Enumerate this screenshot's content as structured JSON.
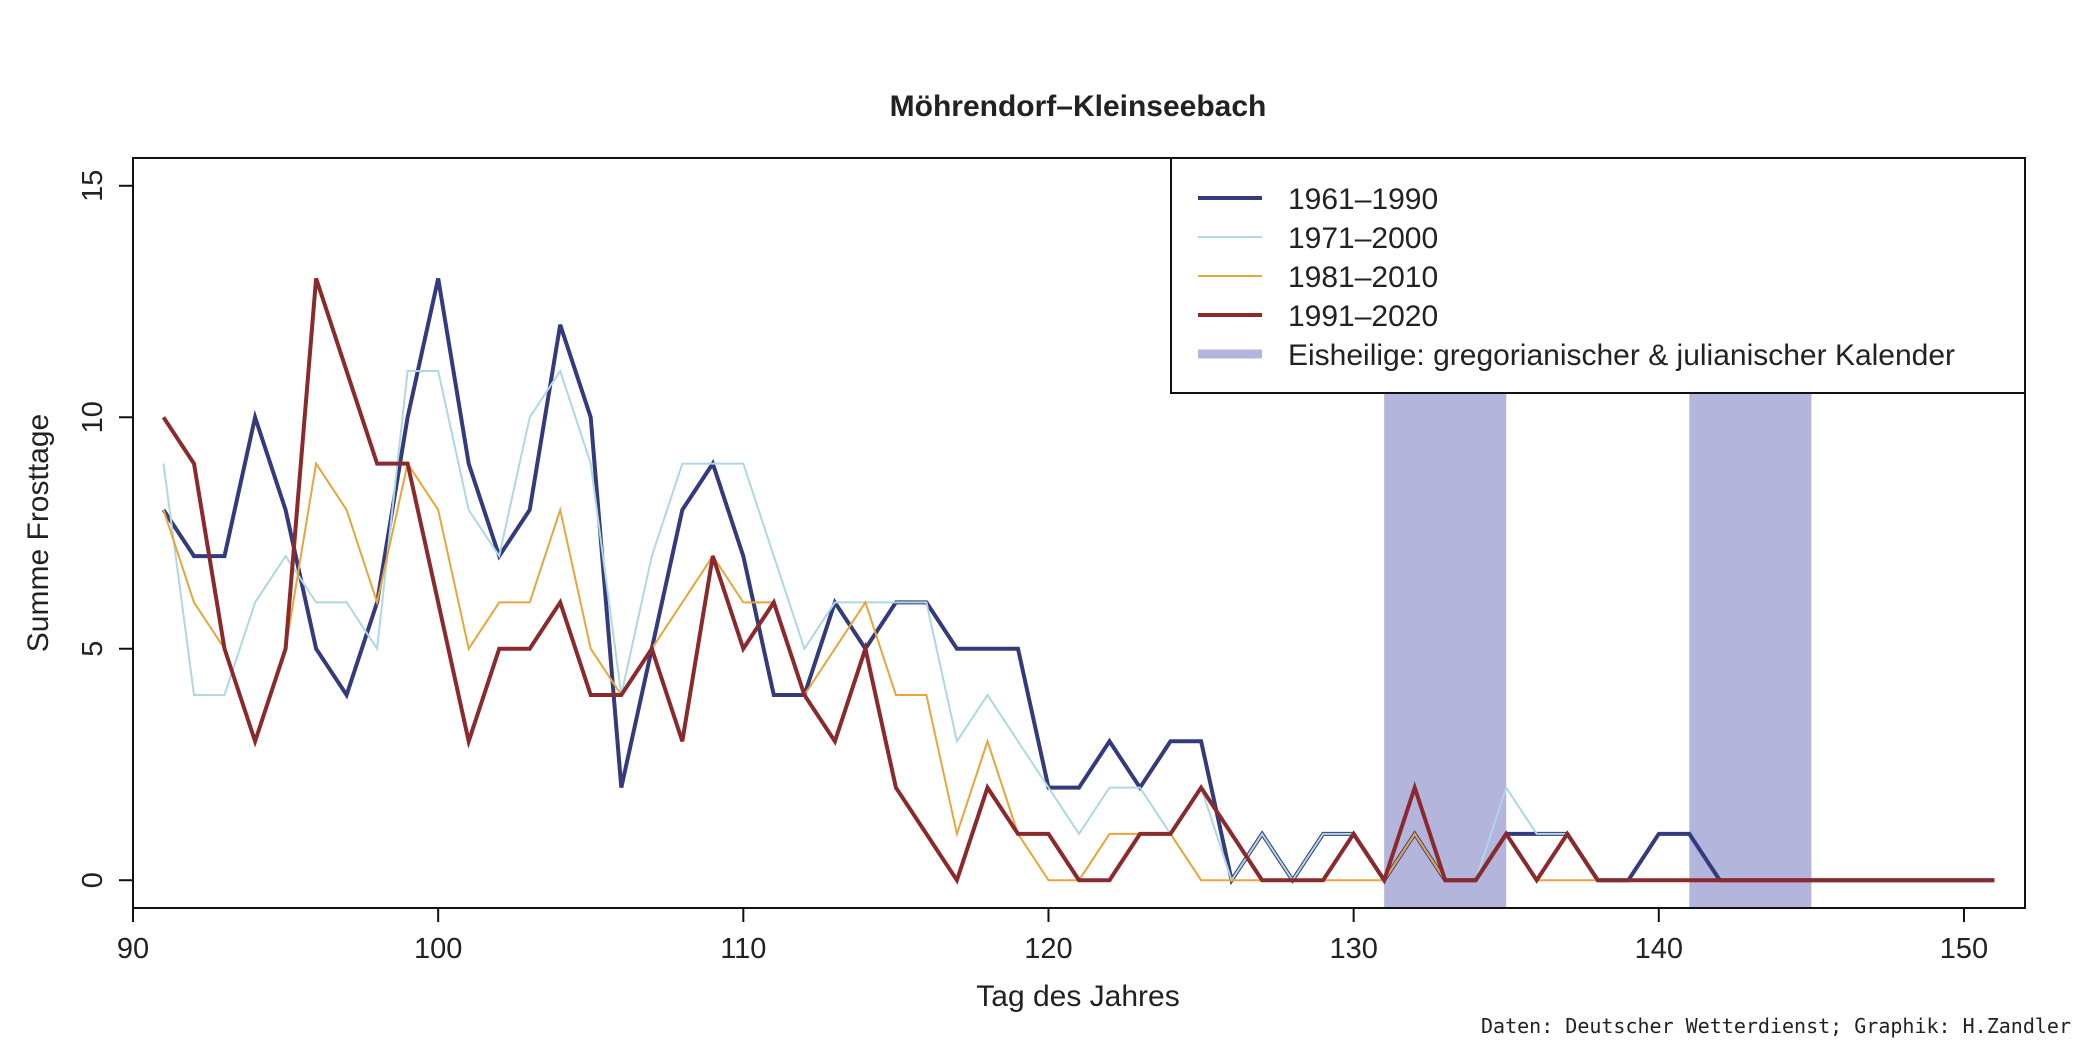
{
  "chart_data": {
    "type": "line",
    "title": "Möhrendorf–Kleinseebach",
    "xlabel": "Tag des Jahres",
    "ylabel": "Summe Frosttage",
    "xlim": [
      90,
      152
    ],
    "ylim": [
      -0.6,
      15.6
    ],
    "x_ticks": [
      90,
      100,
      110,
      120,
      130,
      140,
      150
    ],
    "y_ticks": [
      0,
      5,
      10,
      15
    ],
    "grid": false,
    "legend_position": "top-right",
    "highlight_bands": {
      "name": "Eisheilige: gregorianischer & julianischer Kalender",
      "color": "#b3b5dc",
      "ranges": [
        [
          131,
          135
        ],
        [
          141,
          145
        ]
      ]
    },
    "x": [
      91,
      92,
      93,
      94,
      95,
      96,
      97,
      98,
      99,
      100,
      101,
      102,
      103,
      104,
      105,
      106,
      107,
      108,
      109,
      110,
      111,
      112,
      113,
      114,
      115,
      116,
      117,
      118,
      119,
      120,
      121,
      122,
      123,
      124,
      125,
      126,
      127,
      128,
      129,
      130,
      131,
      132,
      133,
      134,
      135,
      136,
      137,
      138,
      139,
      140,
      141,
      142,
      143,
      144,
      145,
      146,
      147,
      148,
      149,
      150,
      151
    ],
    "series": [
      {
        "name": "1961–1990",
        "color": "#343b7c",
        "width": 4,
        "values": [
          8,
          7,
          7,
          10,
          8,
          5,
          4,
          6,
          10,
          13,
          9,
          7,
          8,
          12,
          10,
          2,
          5,
          8,
          9,
          7,
          4,
          4,
          6,
          5,
          6,
          6,
          5,
          5,
          5,
          2,
          2,
          3,
          2,
          3,
          3,
          0,
          1,
          0,
          1,
          1,
          0,
          1,
          0,
          0,
          1,
          1,
          1,
          0,
          0,
          1,
          1,
          0,
          0,
          0,
          0,
          0,
          0,
          0,
          0,
          0,
          0
        ]
      },
      {
        "name": "1971–2000",
        "color": "#aed8e2",
        "width": 2,
        "values": [
          9,
          4,
          4,
          6,
          7,
          6,
          6,
          5,
          11,
          11,
          8,
          7,
          10,
          11,
          9,
          4,
          7,
          9,
          9,
          9,
          7,
          5,
          6,
          6,
          6,
          6,
          3,
          4,
          3,
          2,
          1,
          2,
          2,
          1,
          2,
          0,
          1,
          0,
          1,
          1,
          0,
          1,
          0,
          0,
          2,
          1,
          1,
          0,
          0,
          0,
          0,
          0,
          0,
          0,
          0,
          0,
          0,
          0,
          0,
          0,
          0
        ]
      },
      {
        "name": "1981–2010",
        "color": "#eaa53a",
        "width": 2,
        "values": [
          8,
          6,
          5,
          3,
          5,
          9,
          8,
          6,
          9,
          8,
          5,
          6,
          6,
          8,
          5,
          4,
          5,
          6,
          7,
          6,
          6,
          4,
          5,
          6,
          4,
          4,
          1,
          3,
          1,
          0,
          0,
          1,
          1,
          1,
          0,
          0,
          0,
          0,
          0,
          0,
          0,
          1,
          0,
          0,
          1,
          0,
          0,
          0,
          0,
          0,
          0,
          0,
          0,
          0,
          0,
          0,
          0,
          0,
          0,
          0,
          0
        ]
      },
      {
        "name": "1991–2020",
        "color": "#8b2a2d",
        "width": 4,
        "values": [
          10,
          9,
          5,
          3,
          5,
          13,
          11,
          9,
          9,
          6,
          3,
          5,
          5,
          6,
          4,
          4,
          5,
          3,
          7,
          5,
          6,
          4,
          3,
          5,
          2,
          1,
          0,
          2,
          1,
          1,
          0,
          0,
          1,
          1,
          2,
          1,
          0,
          0,
          0,
          1,
          0,
          2,
          0,
          0,
          1,
          0,
          1,
          0,
          0,
          0,
          0,
          0,
          0,
          0,
          0,
          0,
          0,
          0,
          0,
          0,
          0
        ]
      }
    ]
  },
  "credit": "Daten: Deutscher Wetterdienst; Graphik: H.Zandler"
}
